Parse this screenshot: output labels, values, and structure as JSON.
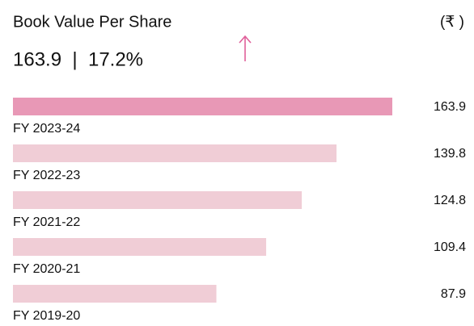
{
  "chart_data": {
    "type": "hbar",
    "title": "Book Value Per Share",
    "unit": "(₹ )",
    "headline": "163.9  |  17.2%",
    "categories": [
      "FY 2023-24",
      "FY 2022-23",
      "FY 2021-22",
      "FY 2020-21",
      "FY 2019-20"
    ],
    "values": [
      163.9,
      139.8,
      124.8,
      109.4,
      87.9
    ],
    "colors": [
      "#e898b6",
      "#f0cdd6",
      "#f0cdd6",
      "#f0cdd6",
      "#f0cdd6"
    ],
    "xlim": [
      0,
      163.9
    ]
  }
}
